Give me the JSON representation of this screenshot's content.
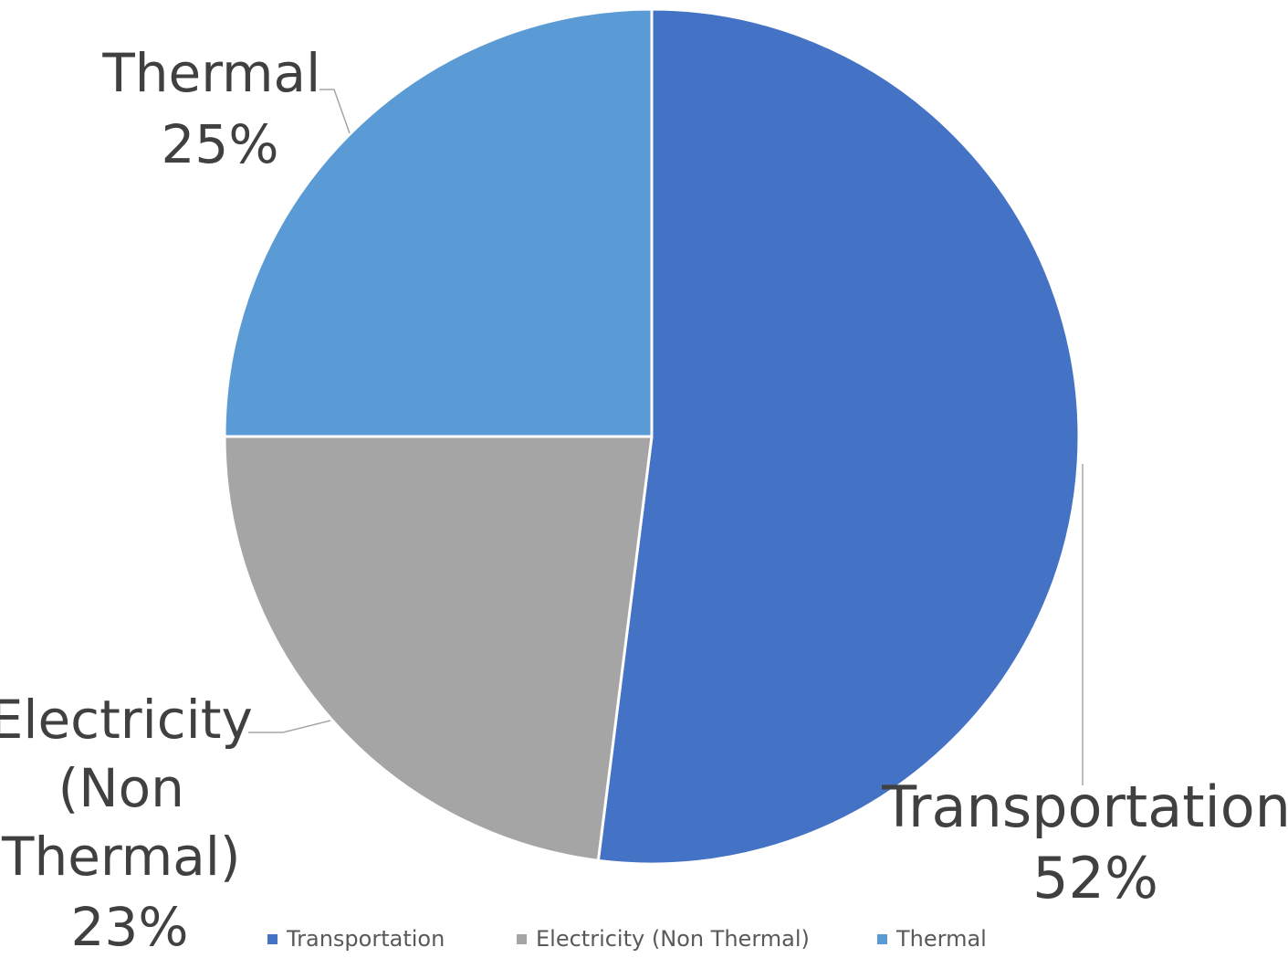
{
  "chart_data": {
    "type": "pie",
    "title": "",
    "categories": [
      "Transportation",
      "Electricity (Non Thermal)",
      "Thermal"
    ],
    "values": [
      52,
      23,
      25
    ],
    "unit": "%",
    "colors": [
      "#4472C4",
      "#A5A5A5",
      "#5B9BD5"
    ],
    "data_labels": [
      {
        "lines": [
          "Transportation",
          "52%"
        ]
      },
      {
        "lines": [
          "Electricity",
          "(Non",
          "Thermal)",
          "23%"
        ]
      },
      {
        "lines": [
          "Thermal",
          "25%"
        ]
      }
    ],
    "legend": {
      "placement": "bottom",
      "items": [
        "Transportation",
        "Electricity (Non Thermal)",
        "Thermal"
      ]
    }
  }
}
